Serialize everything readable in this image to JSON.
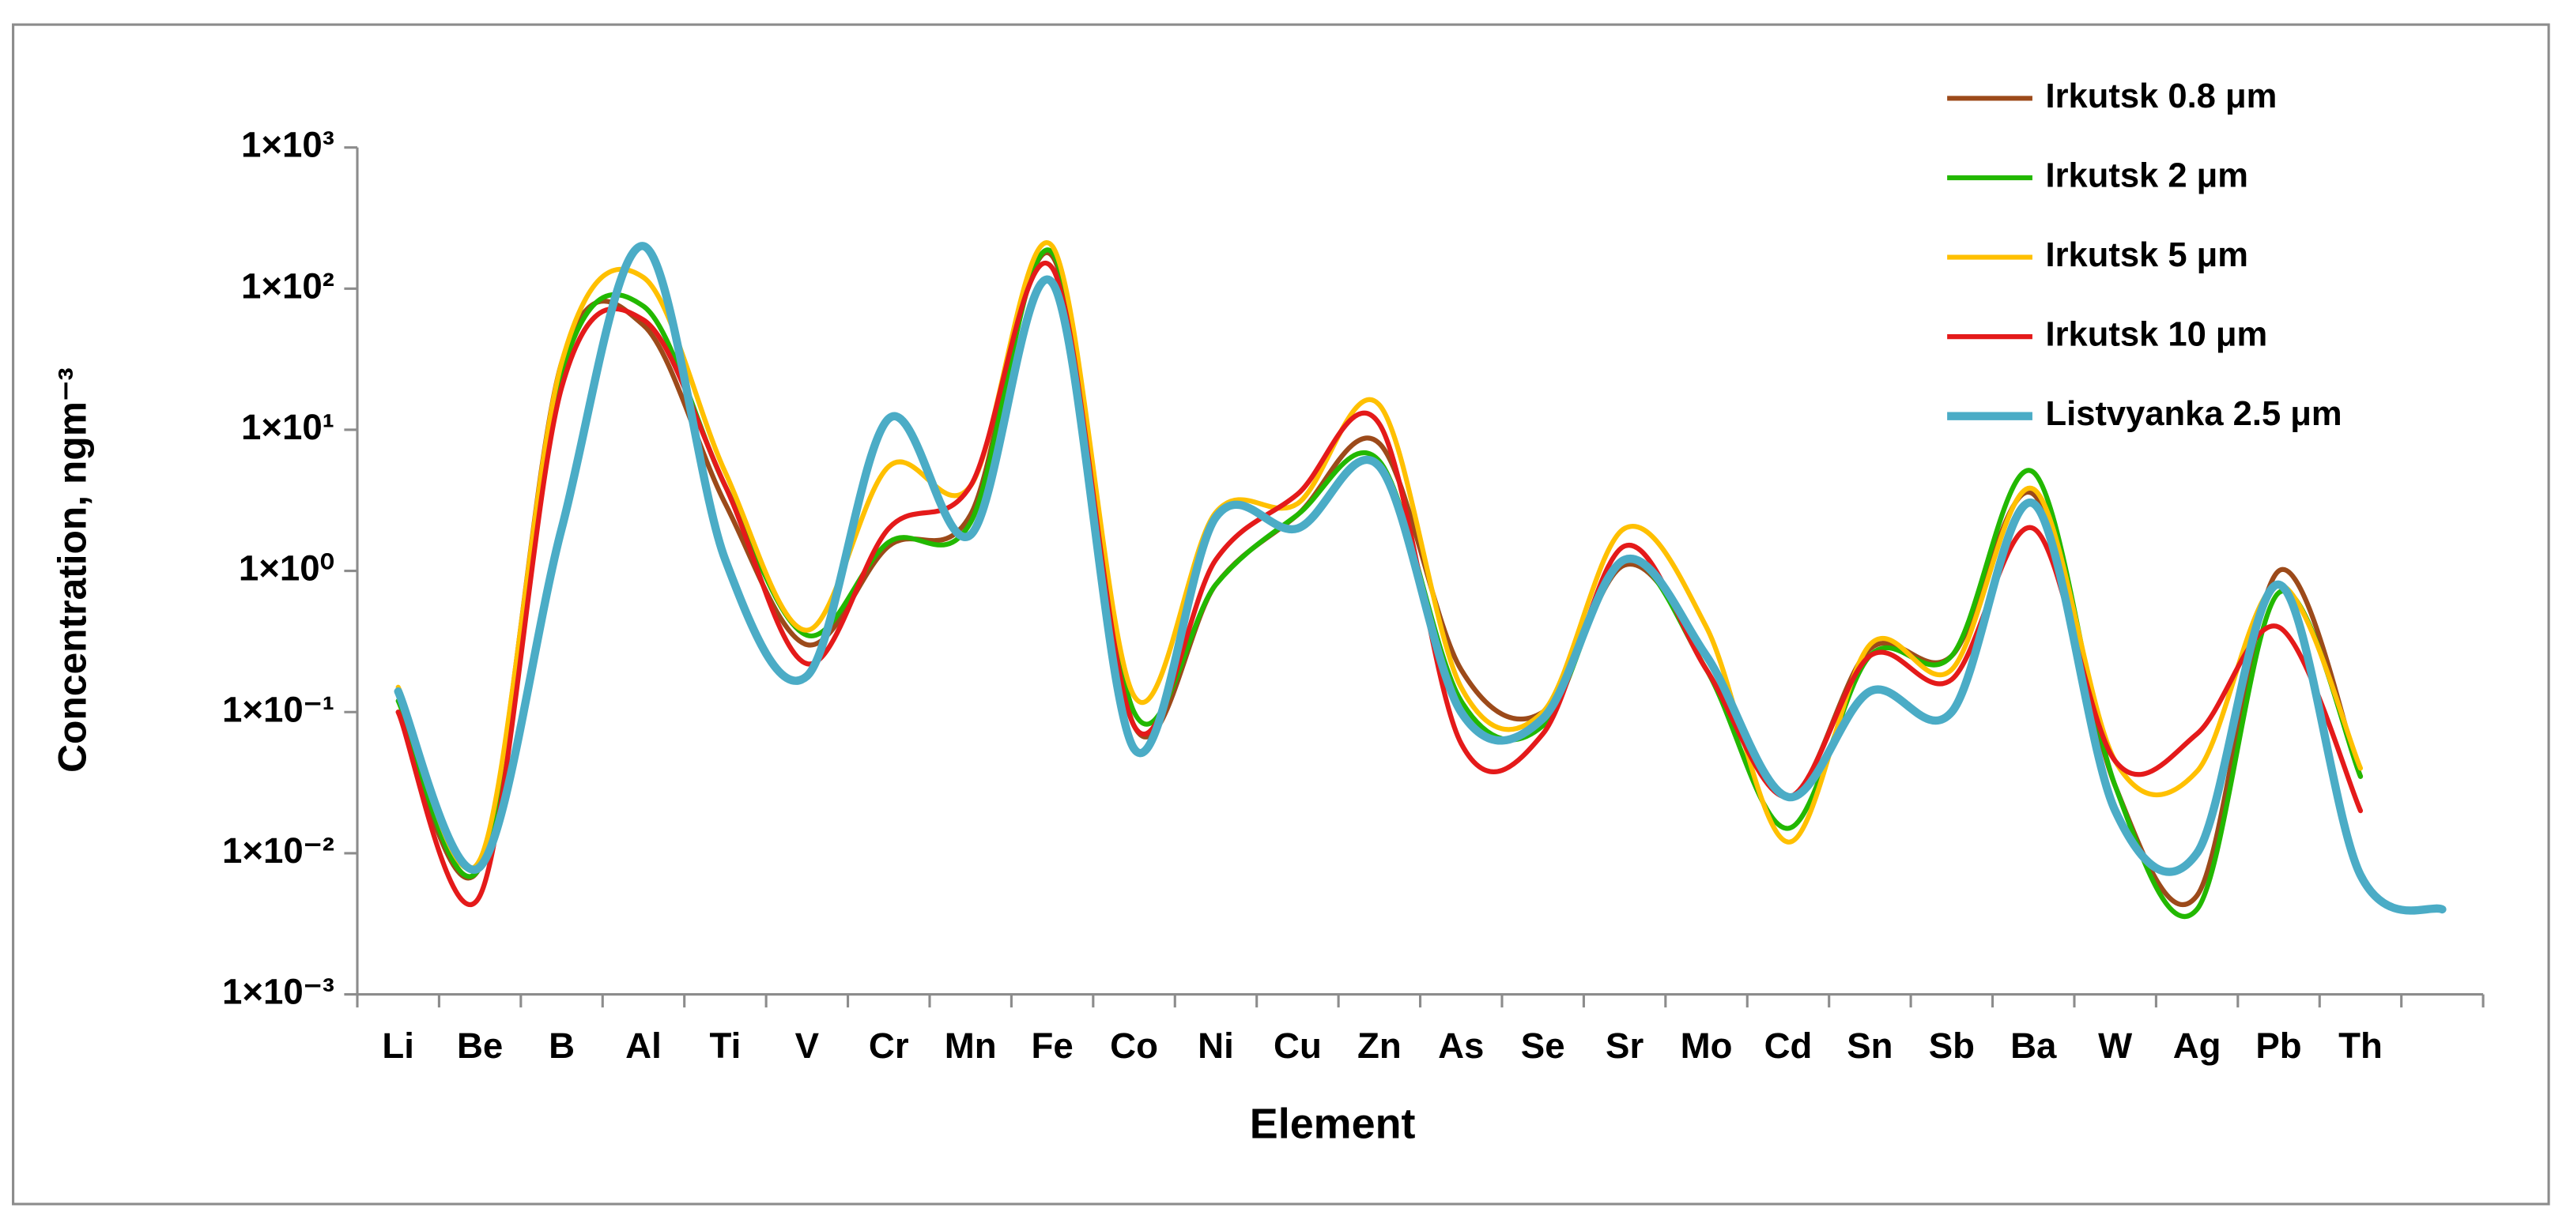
{
  "chart_data": {
    "type": "line",
    "x_label": "Element",
    "y_label": "Concentration, ngm⁻³",
    "categories": [
      "Li",
      "Be",
      "B",
      "Al",
      "Ti",
      "V",
      "Cr",
      "Mn",
      "Fe",
      "Co",
      "Ni",
      "Cu",
      "Zn",
      "As",
      "Se",
      "Sr",
      "Mo",
      "Cd",
      "Sn",
      "Sb",
      "Ba",
      "W",
      "Ag",
      "Pb",
      "Th",
      null
    ],
    "log_scale": true,
    "ylim": [
      0.001,
      1000
    ],
    "yticks": [
      {
        "value": 0.001,
        "label": "1×10⁻³"
      },
      {
        "value": 0.01,
        "label": "1×10⁻²"
      },
      {
        "value": 0.1,
        "label": "1×10⁻¹"
      },
      {
        "value": 1,
        "label": "1×10⁰"
      },
      {
        "value": 10,
        "label": "1×10¹"
      },
      {
        "value": 100,
        "label": "1×10²"
      },
      {
        "value": 1000,
        "label": "1×10³"
      }
    ],
    "grid": false,
    "legend_position": "top-right",
    "series": [
      {
        "name": "Irkutsk 0.8 μm",
        "color": "#9c4a1a",
        "values": [
          0.1,
          0.008,
          30,
          55,
          3,
          0.3,
          1.5,
          2.5,
          170,
          0.08,
          0.8,
          2.5,
          8,
          0.2,
          0.1,
          1.1,
          0.25,
          0.025,
          0.28,
          0.25,
          3.5,
          0.03,
          0.005,
          1,
          0.035,
          null
        ]
      },
      {
        "name": "Irkutsk 2  μm",
        "color": "#22b800",
        "values": [
          0.12,
          0.008,
          25,
          75,
          4,
          0.35,
          1.6,
          2.2,
          180,
          0.1,
          0.8,
          2.5,
          6,
          0.12,
          0.08,
          1.2,
          0.2,
          0.015,
          0.25,
          0.25,
          5,
          0.03,
          0.004,
          0.7,
          0.035,
          null
        ]
      },
      {
        "name": "Irkutsk 5  μm",
        "color": "#ffc000",
        "values": [
          0.15,
          0.009,
          30,
          120,
          5,
          0.38,
          5.5,
          4,
          200,
          0.13,
          2.6,
          3,
          15,
          0.15,
          0.1,
          2,
          0.4,
          0.012,
          0.3,
          0.2,
          3.8,
          0.045,
          0.038,
          0.8,
          0.04,
          null
        ]
      },
      {
        "name": "Irkutsk 10 μm",
        "color": "#e41a1a",
        "values": [
          0.1,
          0.005,
          20,
          60,
          4,
          0.22,
          2,
          4,
          140,
          0.08,
          1.2,
          3.5,
          11,
          0.06,
          0.07,
          1.5,
          0.2,
          0.025,
          0.25,
          0.17,
          2,
          0.045,
          0.07,
          0.4,
          0.02,
          null
        ]
      },
      {
        "name": "Listvyanka 2.5 μm",
        "color": "#4bacc6",
        "values": [
          0.14,
          0.008,
          2,
          200,
          1.2,
          0.18,
          12,
          1.8,
          110,
          0.055,
          2.4,
          2,
          5.5,
          0.1,
          0.09,
          1.2,
          0.25,
          0.025,
          0.14,
          0.1,
          3,
          0.02,
          0.01,
          0.8,
          0.007,
          0.004
        ]
      }
    ]
  }
}
